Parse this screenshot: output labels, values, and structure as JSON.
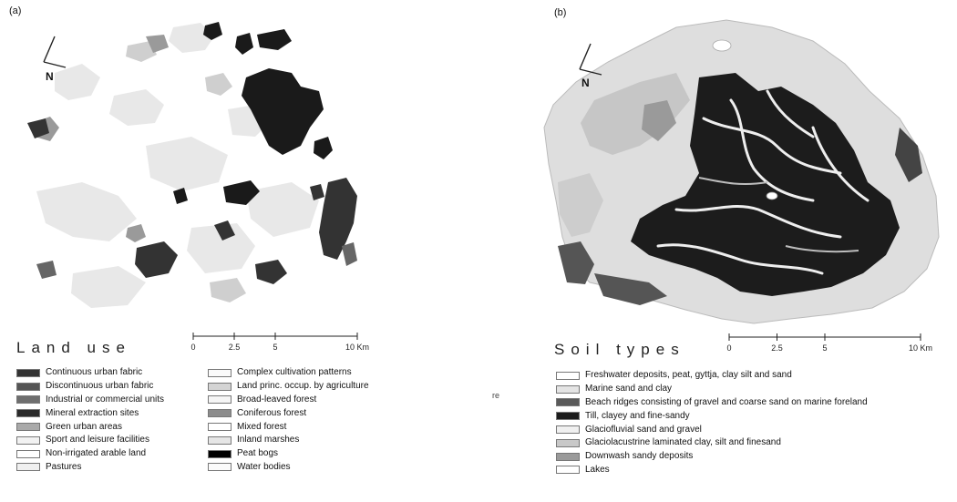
{
  "panel_a": {
    "label": "(a)",
    "north_label": "N",
    "legend_title": "Land use",
    "scale": {
      "ticks": [
        "0",
        "2.5",
        "5",
        "10 Km"
      ],
      "values": [
        0,
        2.5,
        5,
        10
      ]
    },
    "legend_left": [
      {
        "label": "Continuous urban fabric",
        "color": "#333333"
      },
      {
        "label": "Discontinuous urban fabric",
        "color": "#555555"
      },
      {
        "label": "Industrial or commercial units",
        "color": "#6e6e6e"
      },
      {
        "label": "Mineral extraction sites",
        "color": "#2a2a2a"
      },
      {
        "label": "Green urban areas",
        "color": "#a9a9a9"
      },
      {
        "label": "Sport and leisure facilities",
        "color": "#f2f2f2"
      },
      {
        "label": "Non-irrigated arable land",
        "color": "#ffffff"
      },
      {
        "label": "Pastures",
        "color": "#f0f0f0"
      }
    ],
    "legend_right": [
      {
        "label": "Complex cultivation patterns",
        "color": "#fafafa"
      },
      {
        "label": "Land princ. occup. by agriculture",
        "color": "#d4d4d4"
      },
      {
        "label": "Broad-leaved forest",
        "color": "#f5f5f5"
      },
      {
        "label": "Coniferous forest",
        "color": "#8c8c8c"
      },
      {
        "label": "Mixed forest",
        "color": "#ffffff"
      },
      {
        "label": "Inland marshes",
        "color": "#e6e6e6"
      },
      {
        "label": "Peat bogs",
        "color": "#000000"
      },
      {
        "label": "Water bodies",
        "color": "#fbfbfb"
      }
    ]
  },
  "panel_b": {
    "label": "(b)",
    "north_label": "N",
    "legend_title": "Soil types",
    "scale": {
      "ticks": [
        "0",
        "2.5",
        "5",
        "10 Km"
      ],
      "values": [
        0,
        2.5,
        5,
        10
      ]
    },
    "legend": [
      {
        "label": "Freshwater deposits, peat, gyttja, clay silt and sand",
        "color": "#ffffff"
      },
      {
        "label": "Marine sand and clay",
        "color": "#e4e4e4"
      },
      {
        "label": "Beach ridges consisting of gravel and coarse sand on marine foreland",
        "color": "#5a5a5a"
      },
      {
        "label": "Till, clayey and fine-sandy",
        "color": "#1c1c1c"
      },
      {
        "label": "Glaciofluvial sand and gravel",
        "color": "#f0f0f0"
      },
      {
        "label": "Glaciolacustrine laminated clay, silt and finesand",
        "color": "#c8c8c8"
      },
      {
        "label": "Downwash sandy deposits",
        "color": "#9a9a9a"
      },
      {
        "label": "Lakes",
        "color": "#ffffff"
      }
    ]
  },
  "stray_text": "re"
}
